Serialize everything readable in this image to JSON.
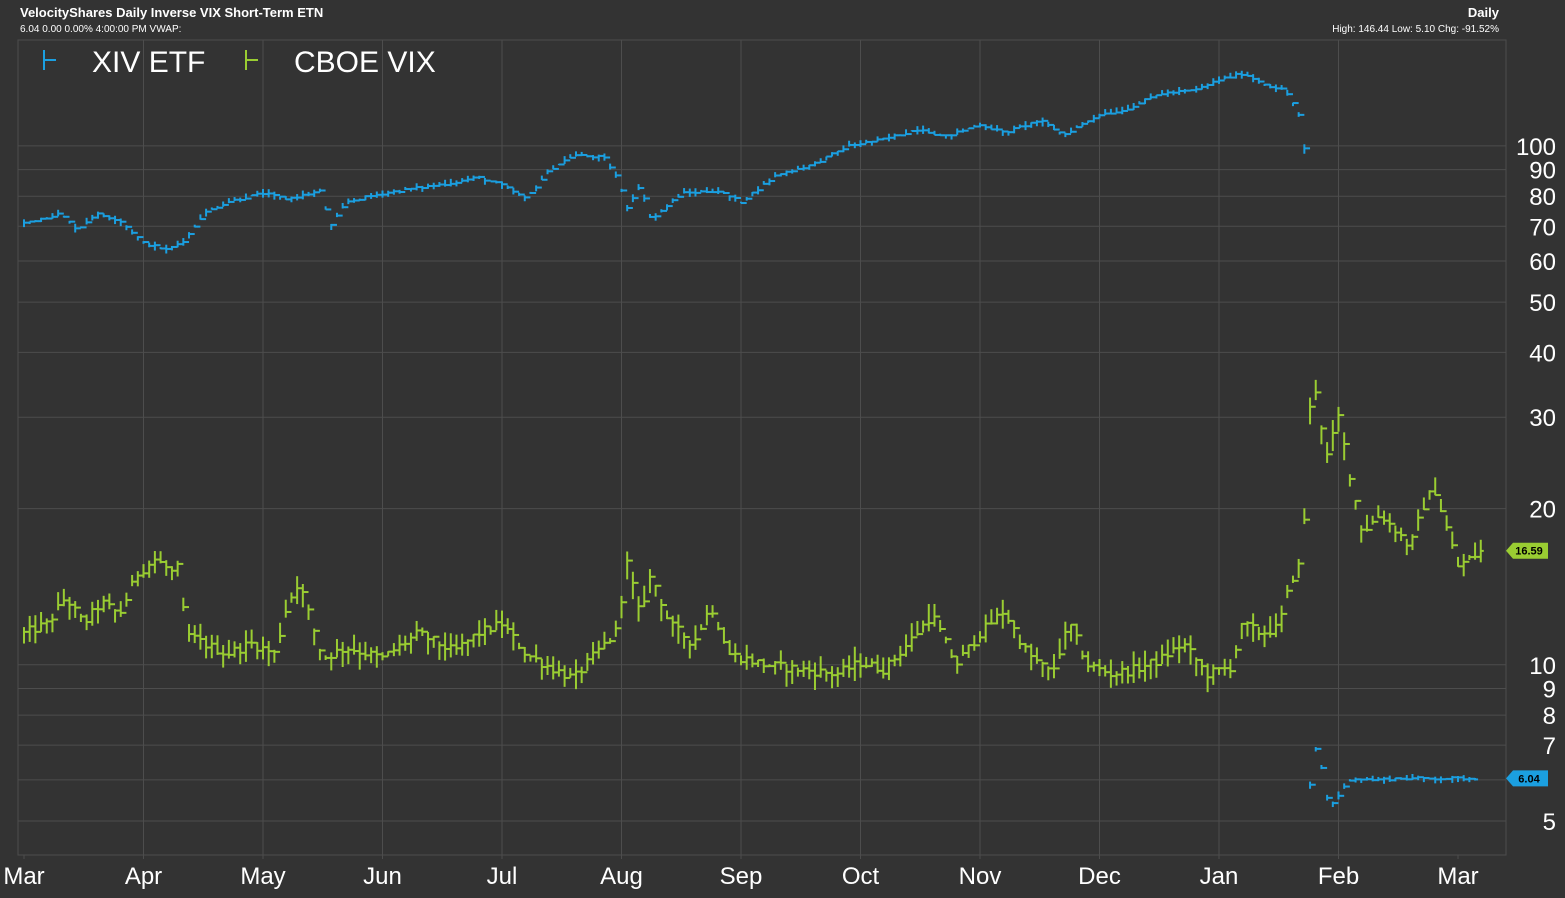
{
  "header": {
    "title": "VelocityShares Daily Inverse VIX Short-Term ETN",
    "quote_line": "6.04 0.00 0.00% 4:00:00 PM VWAP:",
    "period": "Daily",
    "stats_line": "High: 146.44 Low: 5.10 Chg: -91.52%"
  },
  "colors": {
    "background": "#333333",
    "grid": "#4d4d4d",
    "xiv": "#1b9fe0",
    "vix": "#9acd32",
    "text": "#ffffff"
  },
  "chart_data": {
    "type": "line",
    "style": "ohlc-bars",
    "y_scale": "log",
    "ylim": [
      4.3,
      160
    ],
    "y_ticks": [
      5,
      6,
      7,
      8,
      9,
      10,
      20,
      30,
      40,
      50,
      60,
      70,
      80,
      90,
      100
    ],
    "y_tick_labels": [
      "5",
      "",
      "7",
      "8",
      "9",
      "10",
      "20",
      "30",
      "40",
      "50",
      "60",
      "70",
      "80",
      "90",
      "100"
    ],
    "x_labels": [
      "Mar",
      "Apr",
      "May",
      "Jun",
      "Jul",
      "Aug",
      "Sep",
      "Oct",
      "Nov",
      "Dec",
      "Jan",
      "Feb",
      "Mar"
    ],
    "grid": true,
    "legend_position": "top-left",
    "last_value_tags": [
      {
        "series": "CBOE VIX",
        "value": "16.59"
      },
      {
        "series": "XIV ETF",
        "value": "6.04"
      }
    ],
    "series": [
      {
        "name": "XIV ETF",
        "color": "#1b9fe0",
        "points": [
          [
            0,
            71
          ],
          [
            0.3,
            74
          ],
          [
            0.45,
            69
          ],
          [
            0.6,
            74
          ],
          [
            0.8,
            72
          ],
          [
            1.0,
            65
          ],
          [
            1.2,
            63
          ],
          [
            1.35,
            66
          ],
          [
            1.5,
            74
          ],
          [
            1.7,
            78
          ],
          [
            2.0,
            81
          ],
          [
            2.2,
            79
          ],
          [
            2.5,
            82
          ],
          [
            2.55,
            69
          ],
          [
            2.7,
            78
          ],
          [
            3.0,
            81
          ],
          [
            3.3,
            83
          ],
          [
            3.6,
            85
          ],
          [
            3.8,
            87
          ],
          [
            4.0,
            84
          ],
          [
            4.2,
            79
          ],
          [
            4.4,
            90
          ],
          [
            4.6,
            96
          ],
          [
            4.85,
            95
          ],
          [
            4.95,
            88
          ],
          [
            5.05,
            76
          ],
          [
            5.15,
            84
          ],
          [
            5.25,
            72
          ],
          [
            5.5,
            81
          ],
          [
            5.8,
            82
          ],
          [
            6.0,
            78
          ],
          [
            6.3,
            88
          ],
          [
            6.6,
            92
          ],
          [
            6.9,
            100
          ],
          [
            7.2,
            103
          ],
          [
            7.5,
            108
          ],
          [
            7.7,
            104
          ],
          [
            8.0,
            110
          ],
          [
            8.2,
            106
          ],
          [
            8.5,
            112
          ],
          [
            8.7,
            105
          ],
          [
            9.0,
            115
          ],
          [
            9.2,
            117
          ],
          [
            9.5,
            126
          ],
          [
            9.8,
            128
          ],
          [
            10.0,
            134
          ],
          [
            10.2,
            138
          ],
          [
            10.4,
            131
          ],
          [
            10.55,
            128
          ],
          [
            10.65,
            118
          ],
          [
            10.7,
            108
          ],
          [
            10.72,
            95
          ],
          [
            10.74,
            10.5
          ],
          [
            10.76,
            5.8
          ],
          [
            10.8,
            7.0
          ],
          [
            10.86,
            6.3
          ],
          [
            10.92,
            5.3
          ],
          [
            11.0,
            5.6
          ],
          [
            11.1,
            6.04
          ],
          [
            11.3,
            6.0
          ],
          [
            11.5,
            6.04
          ],
          [
            11.7,
            6.04
          ],
          [
            12.0,
            6.04
          ],
          [
            12.15,
            6.04
          ]
        ]
      },
      {
        "name": "CBOE VIX",
        "color": "#9acd32",
        "points": [
          [
            0,
            11.5
          ],
          [
            0.2,
            12.0
          ],
          [
            0.35,
            13.5
          ],
          [
            0.5,
            12.0
          ],
          [
            0.65,
            13.2
          ],
          [
            0.8,
            12.5
          ],
          [
            0.95,
            15.0
          ],
          [
            1.1,
            16.0
          ],
          [
            1.25,
            15.0
          ],
          [
            1.3,
            15.5
          ],
          [
            1.35,
            11.5
          ],
          [
            1.5,
            11.0
          ],
          [
            1.7,
            10.5
          ],
          [
            1.9,
            11.0
          ],
          [
            2.1,
            10.5
          ],
          [
            2.2,
            13.0
          ],
          [
            2.3,
            14.5
          ],
          [
            2.5,
            10.3
          ],
          [
            2.7,
            10.8
          ],
          [
            3.0,
            10.3
          ],
          [
            3.3,
            11.5
          ],
          [
            3.6,
            10.6
          ],
          [
            3.8,
            11.5
          ],
          [
            4.0,
            12.0
          ],
          [
            4.2,
            10.5
          ],
          [
            4.4,
            9.9
          ],
          [
            4.6,
            9.4
          ],
          [
            4.8,
            10.6
          ],
          [
            4.95,
            11.5
          ],
          [
            5.05,
            15.8
          ],
          [
            5.15,
            12.5
          ],
          [
            5.25,
            15.0
          ],
          [
            5.4,
            12.0
          ],
          [
            5.6,
            11.0
          ],
          [
            5.75,
            13.0
          ],
          [
            5.9,
            10.5
          ],
          [
            6.2,
            10.0
          ],
          [
            6.5,
            9.8
          ],
          [
            6.8,
            9.6
          ],
          [
            7.0,
            10.1
          ],
          [
            7.2,
            9.8
          ],
          [
            7.4,
            11.0
          ],
          [
            7.6,
            12.5
          ],
          [
            7.8,
            10.0
          ],
          [
            8.0,
            11.5
          ],
          [
            8.2,
            12.7
          ],
          [
            8.4,
            10.5
          ],
          [
            8.6,
            9.6
          ],
          [
            8.75,
            12.0
          ],
          [
            8.9,
            10.0
          ],
          [
            9.1,
            9.6
          ],
          [
            9.3,
            9.8
          ],
          [
            9.5,
            10.2
          ],
          [
            9.7,
            11.0
          ],
          [
            9.9,
            9.6
          ],
          [
            10.1,
            9.9
          ],
          [
            10.2,
            12.0
          ],
          [
            10.35,
            11.5
          ],
          [
            10.5,
            11.8
          ],
          [
            10.6,
            14.5
          ],
          [
            10.7,
            16.0
          ],
          [
            10.75,
            30.0
          ],
          [
            10.8,
            35.0
          ],
          [
            10.9,
            25.0
          ],
          [
            11.0,
            30.0
          ],
          [
            11.1,
            23.0
          ],
          [
            11.2,
            18.0
          ],
          [
            11.35,
            19.5
          ],
          [
            11.5,
            18.0
          ],
          [
            11.6,
            16.8
          ],
          [
            11.7,
            20.0
          ],
          [
            11.8,
            22.0
          ],
          [
            11.9,
            18.5
          ],
          [
            12.0,
            15.5
          ],
          [
            12.1,
            16.0
          ],
          [
            12.2,
            16.59
          ]
        ]
      }
    ]
  }
}
